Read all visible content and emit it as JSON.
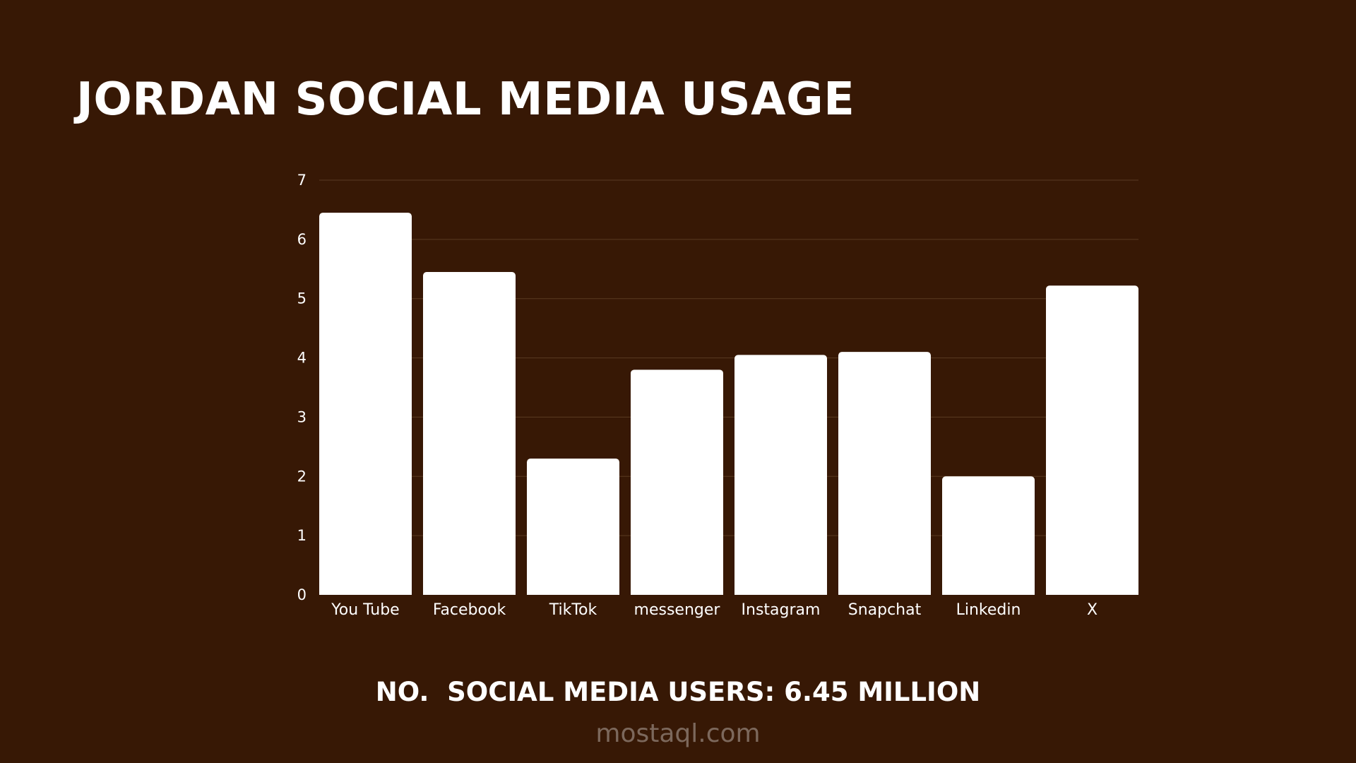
{
  "title": "JORDAN SOCIAL MEDIA USAGE",
  "footer": "NO.  SOCIAL MEDIA USERS: 6.45 MILLION",
  "watermark": "mostaql.com",
  "colors": {
    "background": "#371805",
    "bars": "#ffffff",
    "text": "#ffffff",
    "grid": "#5a3a22"
  },
  "chart_data": {
    "type": "bar",
    "categories": [
      "You Tube",
      "Facebook",
      "TikTok",
      "messenger",
      "Instagram",
      "Snapchat",
      "Linkedin",
      "X"
    ],
    "values": [
      6.45,
      5.45,
      2.3,
      3.8,
      4.05,
      4.1,
      2.0,
      5.22
    ],
    "title": "JORDAN SOCIAL MEDIA USAGE",
    "xlabel": "",
    "ylabel": "",
    "ylim": [
      0,
      7
    ],
    "yticks": [
      0,
      1,
      2,
      3,
      4,
      5,
      6,
      7
    ],
    "grid": true,
    "legend": "none"
  }
}
